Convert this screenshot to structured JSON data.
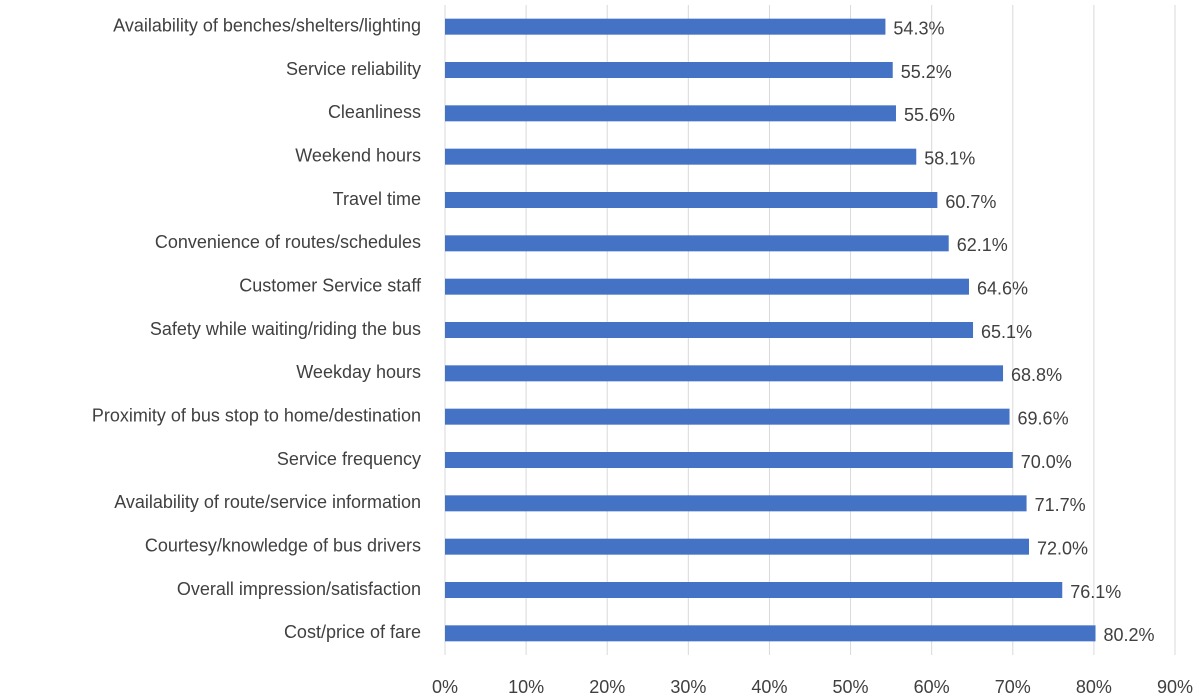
{
  "chart_data": {
    "type": "bar",
    "orientation": "horizontal",
    "categories": [
      "Availability of benches/shelters/lighting",
      "Service reliability",
      "Cleanliness",
      "Weekend hours",
      "Travel time",
      "Convenience of routes/schedules",
      "Customer Service staff",
      "Safety while waiting/riding the bus",
      "Weekday hours",
      "Proximity of bus stop to home/destination",
      "Service frequency",
      "Availability of route/service information",
      "Courtesy/knowledge of bus drivers",
      "Overall impression/satisfaction",
      "Cost/price of fare"
    ],
    "values": [
      54.3,
      55.2,
      55.6,
      58.1,
      60.7,
      62.1,
      64.6,
      65.1,
      68.8,
      69.6,
      70.0,
      71.7,
      72.0,
      76.1,
      80.2
    ],
    "value_labels": [
      "54.3%",
      "55.2%",
      "55.6%",
      "58.1%",
      "60.7%",
      "62.1%",
      "64.6%",
      "65.1%",
      "68.8%",
      "69.6%",
      "70.0%",
      "71.7%",
      "72.0%",
      "76.1%",
      "80.2%"
    ],
    "color": "#4472c4",
    "xlim": [
      0,
      90
    ],
    "xticks": [
      {
        "value": 0,
        "label": "0%"
      },
      {
        "value": 10,
        "label": "10%"
      },
      {
        "value": 20,
        "label": "20%"
      },
      {
        "value": 30,
        "label": "30%"
      },
      {
        "value": 40,
        "label": "40%"
      },
      {
        "value": 50,
        "label": "50%"
      },
      {
        "value": 60,
        "label": "60%"
      },
      {
        "value": 70,
        "label": "70%"
      },
      {
        "value": 80,
        "label": "80%"
      },
      {
        "value": 90,
        "label": "90%"
      }
    ],
    "grid": true
  }
}
